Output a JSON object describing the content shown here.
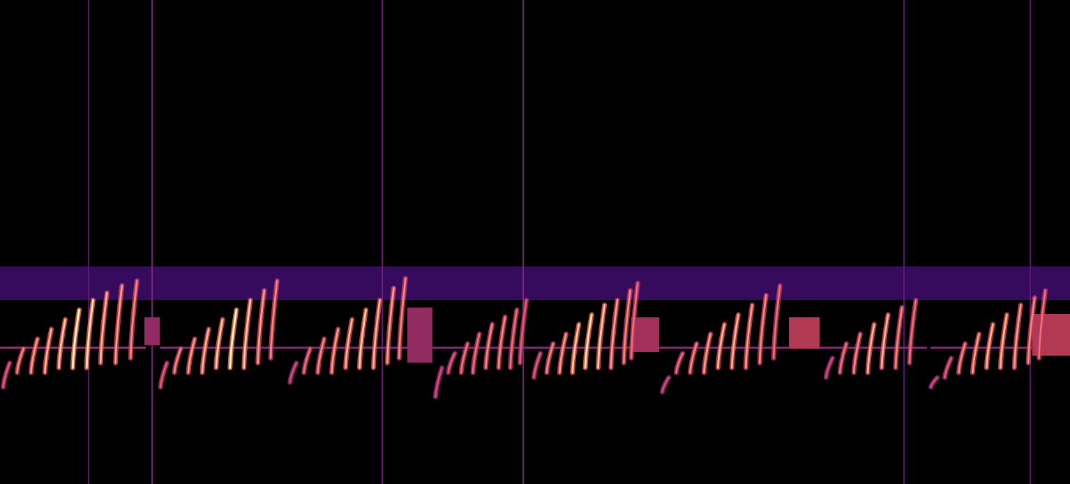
{
  "chart_data": {
    "type": "spectrogram",
    "xlim": [
      0,
      100
    ],
    "ylim": [
      0,
      100
    ],
    "tick_labels": false,
    "grid": false,
    "chirps": [
      [
        0.3,
        0.9,
        20,
        25,
        0.6
      ],
      [
        1.6,
        2.2,
        23,
        28,
        0.7
      ],
      [
        2.9,
        3.5,
        23,
        30,
        0.75
      ],
      [
        4.2,
        4.8,
        23,
        32,
        0.8
      ],
      [
        5.5,
        6.1,
        24,
        34,
        0.85
      ],
      [
        6.8,
        7.4,
        24,
        36,
        0.95
      ],
      [
        8.1,
        8.7,
        24,
        38,
        0.9
      ],
      [
        9.4,
        10.0,
        25,
        39.5,
        0.8
      ],
      [
        10.8,
        11.4,
        25,
        41,
        0.75
      ],
      [
        12.2,
        12.8,
        26,
        42,
        0.7
      ],
      [
        15.0,
        15.6,
        20,
        25,
        0.6
      ],
      [
        16.3,
        16.9,
        23,
        28,
        0.7
      ],
      [
        17.6,
        18.2,
        23,
        30,
        0.75
      ],
      [
        18.9,
        19.5,
        23,
        32,
        0.8
      ],
      [
        20.2,
        20.8,
        24,
        34,
        0.85
      ],
      [
        21.5,
        22.1,
        24,
        36,
        0.95
      ],
      [
        22.8,
        23.4,
        24,
        38,
        0.85
      ],
      [
        24.1,
        24.7,
        25,
        40,
        0.75
      ],
      [
        25.3,
        25.9,
        26,
        42,
        0.7
      ],
      [
        27.1,
        27.7,
        21,
        25,
        0.55
      ],
      [
        28.4,
        29.0,
        23,
        28,
        0.65
      ],
      [
        29.7,
        30.3,
        23,
        30,
        0.7
      ],
      [
        31.0,
        31.6,
        23,
        32,
        0.75
      ],
      [
        32.3,
        32.9,
        24,
        34,
        0.8
      ],
      [
        33.6,
        34.2,
        24,
        36,
        0.85
      ],
      [
        34.9,
        35.5,
        24,
        38,
        0.8
      ],
      [
        36.2,
        36.8,
        25,
        40.5,
        0.75
      ],
      [
        37.3,
        37.9,
        26,
        42.5,
        0.7
      ],
      [
        40.7,
        41.3,
        18,
        24,
        0.55
      ],
      [
        41.9,
        42.5,
        23,
        27,
        0.6
      ],
      [
        43.1,
        43.7,
        23,
        29,
        0.65
      ],
      [
        44.2,
        44.8,
        23,
        31,
        0.65
      ],
      [
        45.4,
        46.0,
        24,
        33,
        0.7
      ],
      [
        46.6,
        47.2,
        24,
        34.5,
        0.7
      ],
      [
        47.7,
        48.3,
        24,
        36,
        0.65
      ],
      [
        48.6,
        49.2,
        25,
        38,
        0.6
      ],
      [
        49.9,
        50.5,
        22,
        27,
        0.6
      ],
      [
        51.1,
        51.7,
        23,
        29,
        0.7
      ],
      [
        52.3,
        52.9,
        23,
        31,
        0.75
      ],
      [
        53.5,
        54.1,
        23,
        33,
        0.85
      ],
      [
        54.7,
        55.3,
        24,
        35,
        0.9
      ],
      [
        55.9,
        56.5,
        24,
        37,
        0.85
      ],
      [
        57.1,
        57.7,
        24,
        38,
        0.75
      ],
      [
        58.3,
        58.9,
        25,
        40,
        0.7
      ],
      [
        59.0,
        59.6,
        26,
        41.5,
        0.65
      ],
      [
        61.9,
        62.5,
        19,
        22,
        0.55
      ],
      [
        63.2,
        63.8,
        23,
        27,
        0.65
      ],
      [
        64.5,
        65.1,
        23,
        29,
        0.7
      ],
      [
        65.8,
        66.4,
        23,
        31,
        0.75
      ],
      [
        67.1,
        67.7,
        24,
        33,
        0.8
      ],
      [
        68.4,
        69.0,
        24,
        35,
        0.8
      ],
      [
        69.7,
        70.3,
        24,
        37,
        0.75
      ],
      [
        71.0,
        71.6,
        25,
        39,
        0.7
      ],
      [
        72.3,
        72.9,
        26,
        41,
        0.65
      ],
      [
        77.2,
        77.8,
        22,
        26,
        0.55
      ],
      [
        78.5,
        79.1,
        23,
        29,
        0.65
      ],
      [
        79.8,
        80.4,
        23,
        31,
        0.7
      ],
      [
        81.1,
        81.7,
        23,
        33,
        0.8
      ],
      [
        82.4,
        83.0,
        24,
        35,
        0.8
      ],
      [
        83.7,
        84.3,
        24,
        36.5,
        0.7
      ],
      [
        85.0,
        85.6,
        25,
        38,
        0.65
      ],
      [
        87.0,
        87.6,
        20,
        22,
        0.55
      ],
      [
        88.3,
        88.9,
        22,
        26,
        0.6
      ],
      [
        89.6,
        90.2,
        23,
        29,
        0.7
      ],
      [
        90.9,
        91.5,
        23,
        31,
        0.75
      ],
      [
        92.2,
        92.8,
        24,
        33,
        0.8
      ],
      [
        93.5,
        94.1,
        24,
        35,
        0.8
      ],
      [
        94.8,
        95.4,
        24,
        37,
        0.75
      ],
      [
        96.1,
        96.7,
        25,
        38.5,
        0.7
      ],
      [
        97.1,
        97.7,
        26,
        40,
        0.65
      ]
    ],
    "tones": [
      [
        0,
        13.5,
        28.2,
        0.45
      ],
      [
        15,
        38,
        28.2,
        0.4
      ],
      [
        40.5,
        59,
        28.2,
        0.4
      ],
      [
        61.6,
        73.7,
        28.2,
        0.4
      ],
      [
        76.6,
        86.5,
        28.2,
        0.4
      ],
      [
        87,
        96.5,
        28.2,
        0.4
      ]
    ],
    "noise_bands": [
      [
        0,
        100,
        38,
        45,
        0.22
      ],
      [
        13.5,
        14.9,
        28.7,
        34.4,
        0.5
      ],
      [
        38.1,
        40.4,
        25.1,
        36.5,
        0.5
      ],
      [
        59.0,
        61.6,
        27.2,
        34.4,
        0.55
      ],
      [
        73.7,
        76.6,
        28.0,
        34.4,
        0.6
      ],
      [
        96.5,
        100,
        26.5,
        35.2,
        0.6
      ]
    ],
    "clicks": [
      [
        8.3,
        0.3
      ],
      [
        14.2,
        0.4
      ],
      [
        35.7,
        0.35
      ],
      [
        48.9,
        0.4
      ],
      [
        84.5,
        0.3
      ],
      [
        96.3,
        0.3
      ]
    ]
  }
}
